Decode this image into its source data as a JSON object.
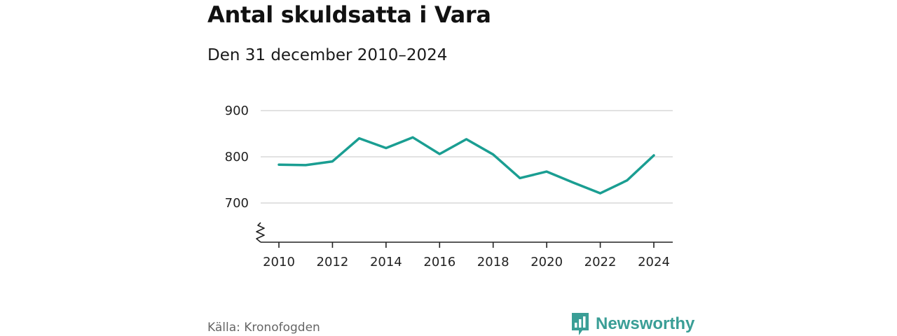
{
  "header": {
    "title": "Antal skuldsatta i Vara",
    "subtitle": "Den 31 december 2010–2024"
  },
  "footer": {
    "source": "Källa: Kronofogden",
    "brand": "Newsworthy",
    "brand_icon": "newsworthy-logo-icon"
  },
  "colors": {
    "line": "#1a9e92",
    "grid": "#d9d9d9",
    "axis": "#222222",
    "brand": "#3a9e96"
  },
  "chart_data": {
    "type": "line",
    "title": "Antal skuldsatta i Vara",
    "subtitle": "Den 31 december 2010–2024",
    "xlabel": "",
    "ylabel": "",
    "x": [
      2010,
      2011,
      2012,
      2013,
      2014,
      2015,
      2016,
      2017,
      2018,
      2019,
      2020,
      2021,
      2022,
      2023,
      2024
    ],
    "series": [
      {
        "name": "Antal skuldsatta",
        "values": [
          783,
          782,
          790,
          840,
          819,
          842,
          806,
          838,
          805,
          754,
          768,
          744,
          721,
          749,
          803
        ]
      }
    ],
    "xlim": [
      2010,
      2024
    ],
    "ylim": [
      615,
      900
    ],
    "y_ticks": [
      700,
      800,
      900
    ],
    "x_ticks": [
      2010,
      2012,
      2014,
      2016,
      2018,
      2020,
      2022,
      2024
    ],
    "axis_break": true,
    "grid": true,
    "legend": "none"
  }
}
